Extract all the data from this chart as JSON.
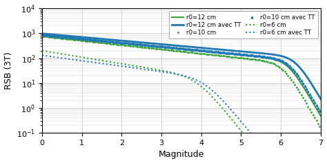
{
  "title": "",
  "xlabel": "Magnitude",
  "ylabel": "RSB (3T)",
  "xlim": [
    0,
    7
  ],
  "ylim": [
    0.1,
    10000
  ],
  "background_color": "#ffffff",
  "grid_color": "#cccccc"
}
